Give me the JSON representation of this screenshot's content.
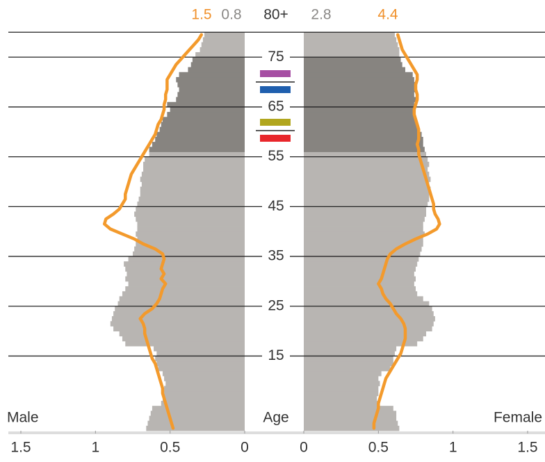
{
  "chart_data": {
    "type": "pyramid",
    "left_label": "Male",
    "center_label": "Age",
    "right_label": "Female",
    "top_group": {
      "label": "80+",
      "male_line": 1.5,
      "male_bar": 0.8,
      "female_bar": 2.8,
      "female_line": 4.4
    },
    "ylim": [
      0,
      80
    ],
    "yticks": [
      15,
      25,
      35,
      45,
      55,
      65,
      75
    ],
    "xlim": [
      0,
      1.5
    ],
    "xticks": [
      0,
      {
        "value": 0.5,
        "label": "0.5"
      },
      1,
      {
        "value": 1.5,
        "label": "1.5"
      }
    ],
    "bar_color": "#b8b5b2",
    "highlight": {
      "from": 56,
      "to": 74,
      "color": "#878480"
    },
    "line_color": "#f39a2c",
    "male_bars": [
      0.66,
      0.65,
      0.64,
      0.63,
      0.62,
      0.56,
      0.55,
      0.54,
      0.54,
      0.53,
      0.54,
      0.55,
      0.58,
      0.59,
      0.6,
      0.59,
      0.61,
      0.8,
      0.82,
      0.84,
      0.88,
      0.9,
      0.89,
      0.88,
      0.87,
      0.85,
      0.84,
      0.82,
      0.8,
      0.78,
      0.8,
      0.79,
      0.8,
      0.81,
      0.78,
      0.75,
      0.74,
      0.73,
      0.72,
      0.73,
      0.72,
      0.72,
      0.73,
      0.74,
      0.73,
      0.72,
      0.71,
      0.7,
      0.7,
      0.69,
      0.7,
      0.69,
      0.68,
      0.68,
      0.67,
      0.64,
      0.64,
      0.62,
      0.6,
      0.59,
      0.57,
      0.56,
      0.55,
      0.52,
      0.5,
      0.52,
      0.46,
      0.45,
      0.44,
      0.45,
      0.46,
      0.44,
      0.38,
      0.36,
      0.35,
      0.33,
      0.3,
      0.29,
      0.28,
      0.27
    ],
    "male_line": [
      0.48,
      0.49,
      0.5,
      0.51,
      0.52,
      0.53,
      0.54,
      0.55,
      0.55,
      0.56,
      0.57,
      0.58,
      0.59,
      0.6,
      0.62,
      0.63,
      0.64,
      0.65,
      0.66,
      0.67,
      0.67,
      0.68,
      0.7,
      0.67,
      0.62,
      0.59,
      0.57,
      0.56,
      0.55,
      0.53,
      0.56,
      0.54,
      0.56,
      0.55,
      0.54,
      0.55,
      0.6,
      0.68,
      0.74,
      0.82,
      0.9,
      0.94,
      0.93,
      0.88,
      0.84,
      0.82,
      0.8,
      0.8,
      0.79,
      0.78,
      0.77,
      0.76,
      0.74,
      0.72,
      0.7,
      0.68,
      0.66,
      0.64,
      0.62,
      0.6,
      0.59,
      0.58,
      0.56,
      0.55,
      0.54,
      0.54,
      0.53,
      0.53,
      0.52,
      0.52,
      0.52,
      0.5,
      0.48,
      0.46,
      0.43,
      0.4,
      0.37,
      0.34,
      0.31,
      0.29
    ],
    "female_bars": [
      0.64,
      0.63,
      0.62,
      0.62,
      0.6,
      0.5,
      0.49,
      0.5,
      0.5,
      0.51,
      0.5,
      0.52,
      0.58,
      0.6,
      0.6,
      0.61,
      0.62,
      0.76,
      0.8,
      0.82,
      0.86,
      0.87,
      0.88,
      0.87,
      0.86,
      0.84,
      0.8,
      0.76,
      0.75,
      0.74,
      0.75,
      0.74,
      0.75,
      0.76,
      0.77,
      0.78,
      0.79,
      0.8,
      0.8,
      0.81,
      0.8,
      0.8,
      0.81,
      0.82,
      0.82,
      0.83,
      0.84,
      0.84,
      0.85,
      0.84,
      0.85,
      0.84,
      0.83,
      0.84,
      0.83,
      0.82,
      0.81,
      0.8,
      0.8,
      0.79,
      0.77,
      0.76,
      0.75,
      0.75,
      0.74,
      0.74,
      0.75,
      0.74,
      0.75,
      0.75,
      0.74,
      0.73,
      0.68,
      0.66,
      0.65,
      0.64,
      0.64,
      0.63,
      0.62,
      0.61
    ],
    "female_line": [
      0.47,
      0.47,
      0.48,
      0.49,
      0.5,
      0.5,
      0.51,
      0.52,
      0.53,
      0.54,
      0.55,
      0.57,
      0.59,
      0.61,
      0.63,
      0.65,
      0.66,
      0.67,
      0.68,
      0.68,
      0.68,
      0.67,
      0.65,
      0.62,
      0.6,
      0.58,
      0.55,
      0.53,
      0.52,
      0.5,
      0.52,
      0.53,
      0.54,
      0.55,
      0.56,
      0.58,
      0.62,
      0.68,
      0.75,
      0.83,
      0.89,
      0.91,
      0.9,
      0.88,
      0.87,
      0.87,
      0.86,
      0.85,
      0.84,
      0.83,
      0.82,
      0.81,
      0.8,
      0.79,
      0.78,
      0.77,
      0.77,
      0.76,
      0.77,
      0.77,
      0.77,
      0.76,
      0.75,
      0.74,
      0.74,
      0.75,
      0.76,
      0.76,
      0.75,
      0.75,
      0.76,
      0.76,
      0.74,
      0.72,
      0.7,
      0.68,
      0.66,
      0.65,
      0.64,
      0.63
    ]
  }
}
